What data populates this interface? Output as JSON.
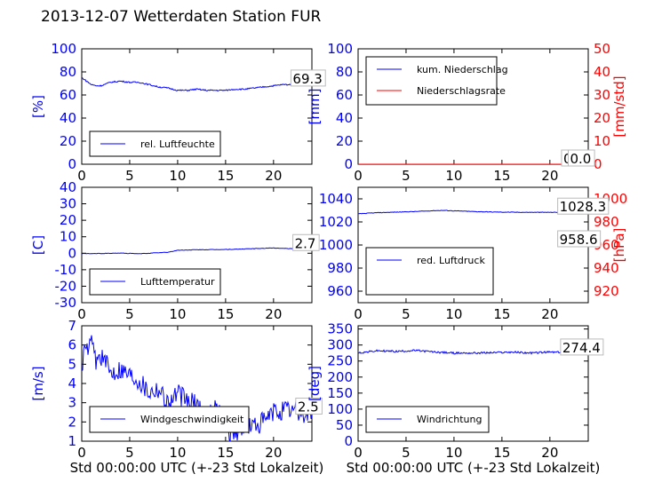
{
  "title": "2013-12-07 Wetterdaten Station FUR",
  "chart_data": [
    {
      "type": "line",
      "xlim": [
        0,
        24
      ],
      "xticks": [
        0,
        5,
        10,
        15,
        20
      ],
      "ylim": [
        0,
        100
      ],
      "yticks": [
        0,
        20,
        40,
        60,
        80,
        100
      ],
      "ylabel": "[%]",
      "ylabel_color": "#0000ff",
      "legend_position": "lower-left",
      "series": [
        {
          "name": "rel. Luftfeuchte",
          "color": "#0000ff",
          "x": [
            0,
            0.5,
            1,
            1.5,
            2,
            3,
            4,
            5,
            6,
            7,
            8,
            9,
            10,
            11,
            12,
            13,
            14,
            15,
            16,
            17,
            18,
            19,
            20,
            21,
            22,
            23,
            24
          ],
          "y": [
            75,
            72,
            69,
            68,
            68,
            71,
            72,
            71,
            71,
            69,
            67,
            66,
            64,
            64,
            65,
            64,
            64,
            64,
            65,
            65,
            66,
            67,
            68,
            69,
            69,
            69,
            69
          ]
        }
      ],
      "annotations": [
        {
          "text": "69.3",
          "x": 22,
          "y": 69.3
        }
      ]
    },
    {
      "type": "line",
      "xlim": [
        0,
        24
      ],
      "xticks": [
        0,
        5,
        10,
        15,
        20
      ],
      "ylim": [
        0,
        100
      ],
      "yticks": [
        0,
        20,
        40,
        60,
        80,
        100
      ],
      "ylabel": "[mm]",
      "ylabel_color": "#0000ff",
      "y2lim": [
        0,
        50
      ],
      "y2ticks": [
        0,
        10,
        20,
        30,
        40,
        50
      ],
      "y2label": "[mm/std]",
      "y2label_color": "#ff0000",
      "legend_position": "upper-left",
      "series": [
        {
          "name": "kum. Niederschlag",
          "color": "#0000ff",
          "axis": "left",
          "x": [
            0,
            24
          ],
          "y": [
            0,
            0
          ]
        },
        {
          "name": "Niederschlagsrate",
          "color": "#ff0000",
          "axis": "right",
          "x": [
            0,
            24
          ],
          "y": [
            0,
            0
          ]
        }
      ],
      "annotations": [
        {
          "text": "0.0",
          "x": 21.4,
          "y": 0
        },
        {
          "text": "0.0",
          "x": 22.1,
          "y": 0
        }
      ]
    },
    {
      "type": "line",
      "xlim": [
        0,
        24
      ],
      "xticks": [
        0,
        5,
        10,
        15,
        20
      ],
      "ylim": [
        -30,
        40
      ],
      "yticks": [
        -30,
        -20,
        -10,
        0,
        10,
        20,
        30,
        40
      ],
      "ylabel": "[C]",
      "ylabel_color": "#0000ff",
      "legend_position": "lower-left",
      "series": [
        {
          "name": "Lufttemperatur",
          "color": "#0000ff",
          "x": [
            0,
            2,
            4,
            6,
            8,
            9,
            10,
            12,
            14,
            16,
            18,
            20,
            22,
            24
          ],
          "y": [
            -0.2,
            -0.2,
            0.1,
            -0.3,
            0.3,
            0.6,
            1.8,
            2.1,
            2.2,
            2.4,
            2.8,
            3.2,
            2.8,
            2.7
          ]
        }
      ],
      "annotations": [
        {
          "text": "2.7",
          "x": 22.2,
          "y": 2.7
        }
      ]
    },
    {
      "type": "line",
      "xlim": [
        0,
        24
      ],
      "xticks": [
        0,
        5,
        10,
        15,
        20
      ],
      "ylim": [
        950,
        1050
      ],
      "yticks": [
        960,
        980,
        1000,
        1020,
        1040
      ],
      "ylabel_color": "#0000ff",
      "y2lim": [
        910,
        1010
      ],
      "y2ticks": [
        920,
        940,
        960,
        980,
        1000
      ],
      "y2label": "[hPa]",
      "y2label_color": "#ff0000",
      "legend_position": "lower-left",
      "series": [
        {
          "name": "red. Luftdruck",
          "color": "#0000ff",
          "axis": "left",
          "x": [
            0,
            2,
            4,
            6,
            8,
            9,
            10,
            12,
            14,
            16,
            18,
            20,
            22,
            24
          ],
          "y": [
            1027,
            1028,
            1028.5,
            1029,
            1029.8,
            1030,
            1029.6,
            1029,
            1028.6,
            1028.4,
            1028.3,
            1028.3,
            1028.3,
            1028.3
          ]
        }
      ],
      "annotations": [
        {
          "text": "1028.3",
          "x": 21,
          "y": 1028.3
        },
        {
          "text": "958.6",
          "x": 21,
          "y": 1000
        }
      ]
    },
    {
      "type": "line",
      "xlim": [
        0,
        24
      ],
      "xticks": [
        0,
        5,
        10,
        15,
        20
      ],
      "ylim": [
        1,
        7
      ],
      "yticks": [
        1,
        2,
        3,
        4,
        5,
        6,
        7
      ],
      "ylabel": "[m/s]",
      "ylabel_color": "#0000ff",
      "xlabel": "Std 00:00:00 UTC (+-23 Std Lokalzeit)",
      "legend_position": "lower-center",
      "series": [
        {
          "name": "Windgeschwindigkeit",
          "color": "#0000ff",
          "x": [
            0,
            0.5,
            1,
            1.5,
            2,
            3,
            4,
            5,
            6,
            7,
            8,
            9,
            10,
            11,
            12,
            13,
            14,
            15,
            15.5,
            16,
            17,
            18,
            19,
            20,
            21,
            22,
            23,
            24
          ],
          "y": [
            5,
            5.8,
            6,
            5.2,
            5.5,
            4.6,
            4.8,
            4.5,
            4.2,
            3.6,
            3.8,
            3,
            3.5,
            3.1,
            2.9,
            2.4,
            2.6,
            2,
            1.5,
            1.5,
            1.8,
            1.8,
            2,
            2.5,
            2.6,
            2.6,
            2.4,
            2.5
          ]
        }
      ],
      "annotations": [
        {
          "text": "2.5",
          "x": 22.5,
          "y": 2.5
        }
      ]
    },
    {
      "type": "line",
      "xlim": [
        0,
        24
      ],
      "xticks": [
        0,
        5,
        10,
        15,
        20
      ],
      "ylim": [
        0,
        360
      ],
      "yticks": [
        0,
        50,
        100,
        150,
        200,
        250,
        300,
        350
      ],
      "ylabel": "[deg]",
      "ylabel_color": "#0000ff",
      "xlabel": "Std 00:00:00 UTC (+-23 Std Lokalzeit)",
      "legend_position": "lower-left",
      "series": [
        {
          "name": "Windrichtung",
          "color": "#0000ff",
          "x": [
            0,
            2,
            4,
            6,
            8,
            10,
            12,
            14,
            16,
            18,
            20,
            22,
            24
          ],
          "y": [
            275,
            282,
            280,
            283,
            278,
            275,
            275,
            276,
            278,
            275,
            278,
            276,
            274
          ]
        }
      ],
      "annotations": [
        {
          "text": "274.4",
          "x": 21.3,
          "y": 274.4
        }
      ]
    }
  ]
}
